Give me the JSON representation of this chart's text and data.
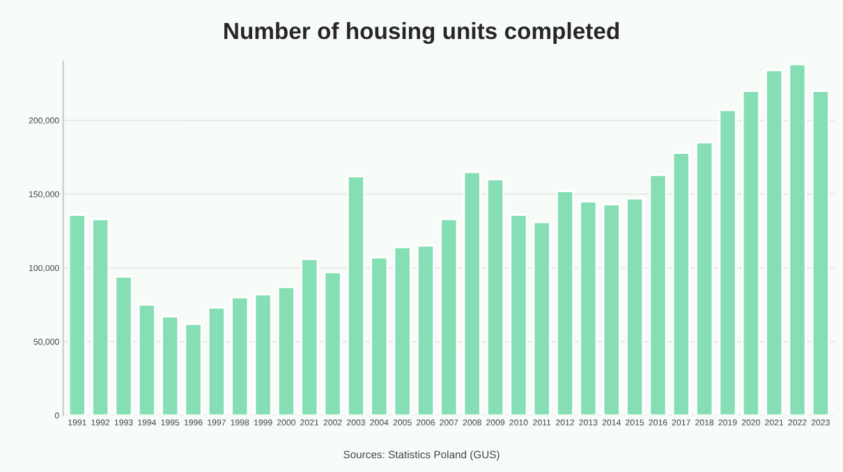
{
  "chart_data": {
    "type": "bar",
    "title": "Number of housing units completed",
    "categories": [
      "1991",
      "1992",
      "1993",
      "1994",
      "1995",
      "1996",
      "1997",
      "1998",
      "1999",
      "2000",
      "2021",
      "2002",
      "2003",
      "2004",
      "2005",
      "2006",
      "2007",
      "2008",
      "2009",
      "2010",
      "2011",
      "2012",
      "2013",
      "2014",
      "2015",
      "2016",
      "2017",
      "2018",
      "2019",
      "2020",
      "2021",
      "2022",
      "2023"
    ],
    "values": [
      136000,
      133000,
      94000,
      75000,
      67000,
      62000,
      73000,
      80000,
      82000,
      87000,
      106000,
      97000,
      162000,
      107000,
      114000,
      115000,
      133000,
      165000,
      160000,
      136000,
      131000,
      152000,
      145000,
      143000,
      147000,
      163000,
      178000,
      185000,
      207000,
      220000,
      234000,
      238000,
      220000
    ],
    "color": "#86dfb4",
    "ylim": [
      0,
      240000
    ],
    "yticks": [
      0,
      {
        "value": 50000,
        "label": "50,000"
      },
      {
        "value": 100000,
        "label": "100,000"
      },
      {
        "value": 150000,
        "label": "150,000"
      },
      {
        "value": 200000,
        "label": "200,000"
      }
    ],
    "grid": "y",
    "annotations": [
      "Sources: Statistics Poland (GUS)"
    ]
  }
}
